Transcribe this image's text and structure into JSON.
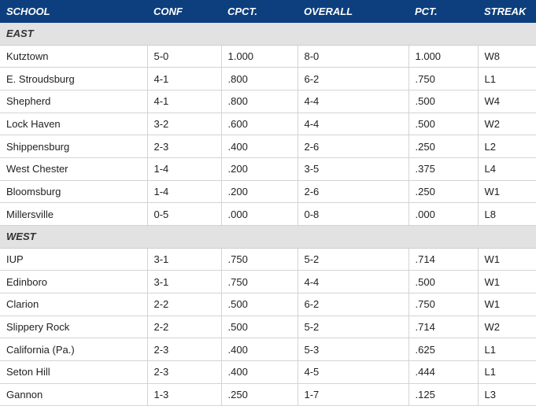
{
  "table": {
    "columns": [
      "SCHOOL",
      "CONF",
      "CPCT.",
      "OVERALL",
      "PCT.",
      "STREAK"
    ],
    "sections": [
      {
        "name": "EAST",
        "rows": [
          [
            "Kutztown",
            "5-0",
            "1.000",
            "8-0",
            "1.000",
            "W8"
          ],
          [
            "E. Stroudsburg",
            "4-1",
            ".800",
            "6-2",
            ".750",
            "L1"
          ],
          [
            "Shepherd",
            "4-1",
            ".800",
            "4-4",
            ".500",
            "W4"
          ],
          [
            "Lock Haven",
            "3-2",
            ".600",
            "4-4",
            ".500",
            "W2"
          ],
          [
            "Shippensburg",
            "2-3",
            ".400",
            "2-6",
            ".250",
            "L2"
          ],
          [
            "West Chester",
            "1-4",
            ".200",
            "3-5",
            ".375",
            "L4"
          ],
          [
            "Bloomsburg",
            "1-4",
            ".200",
            "2-6",
            ".250",
            "W1"
          ],
          [
            "Millersville",
            "0-5",
            ".000",
            "0-8",
            ".000",
            "L8"
          ]
        ]
      },
      {
        "name": "WEST",
        "rows": [
          [
            "IUP",
            "3-1",
            ".750",
            "5-2",
            ".714",
            "W1"
          ],
          [
            "Edinboro",
            "3-1",
            ".750",
            "4-4",
            ".500",
            "W1"
          ],
          [
            "Clarion",
            "2-2",
            ".500",
            "6-2",
            ".750",
            "W1"
          ],
          [
            "Slippery Rock",
            "2-2",
            ".500",
            "5-2",
            ".714",
            "W2"
          ],
          [
            "California (Pa.)",
            "2-3",
            ".400",
            "5-3",
            ".625",
            "L1"
          ],
          [
            "Seton Hill",
            "2-3",
            ".400",
            "4-5",
            ".444",
            "L1"
          ],
          [
            "Gannon",
            "1-3",
            ".250",
            "1-7",
            ".125",
            "L3"
          ]
        ]
      }
    ]
  }
}
